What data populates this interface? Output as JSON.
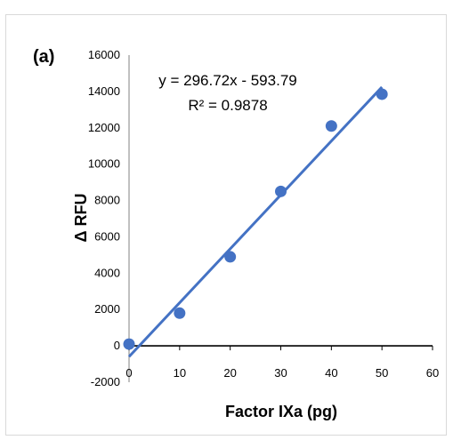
{
  "chart_data": {
    "type": "scatter",
    "panel_label": "(a)",
    "xlabel": "Factor IXa (pg)",
    "ylabel": "Δ RFU",
    "xlim": [
      0,
      60
    ],
    "ylim": [
      -2000,
      16000
    ],
    "x_ticks": [
      0,
      10,
      20,
      30,
      40,
      50,
      60
    ],
    "y_ticks": [
      -2000,
      0,
      2000,
      4000,
      6000,
      8000,
      10000,
      12000,
      14000,
      16000
    ],
    "x_tick_labels": [
      "0",
      "10",
      "20",
      "30",
      "40",
      "50",
      "60"
    ],
    "y_tick_labels": [
      "-2000",
      "0",
      "2000",
      "4000",
      "6000",
      "8000",
      "10000",
      "12000",
      "14000",
      "16000"
    ],
    "series": [
      {
        "x": [
          0,
          10,
          20,
          30,
          40,
          50
        ],
        "y": [
          100,
          1800,
          4900,
          8500,
          12100,
          13850
        ]
      }
    ],
    "trendline": {
      "slope": 296.72,
      "intercept": -593.79,
      "x_range": [
        0,
        50
      ]
    },
    "equation_text": "y = 296.72x - 593.79",
    "r2_text": "R² = 0.9878",
    "grid": false,
    "legend": "none",
    "colors": {
      "marker": "#4472c4",
      "line": "#4472c4"
    }
  }
}
